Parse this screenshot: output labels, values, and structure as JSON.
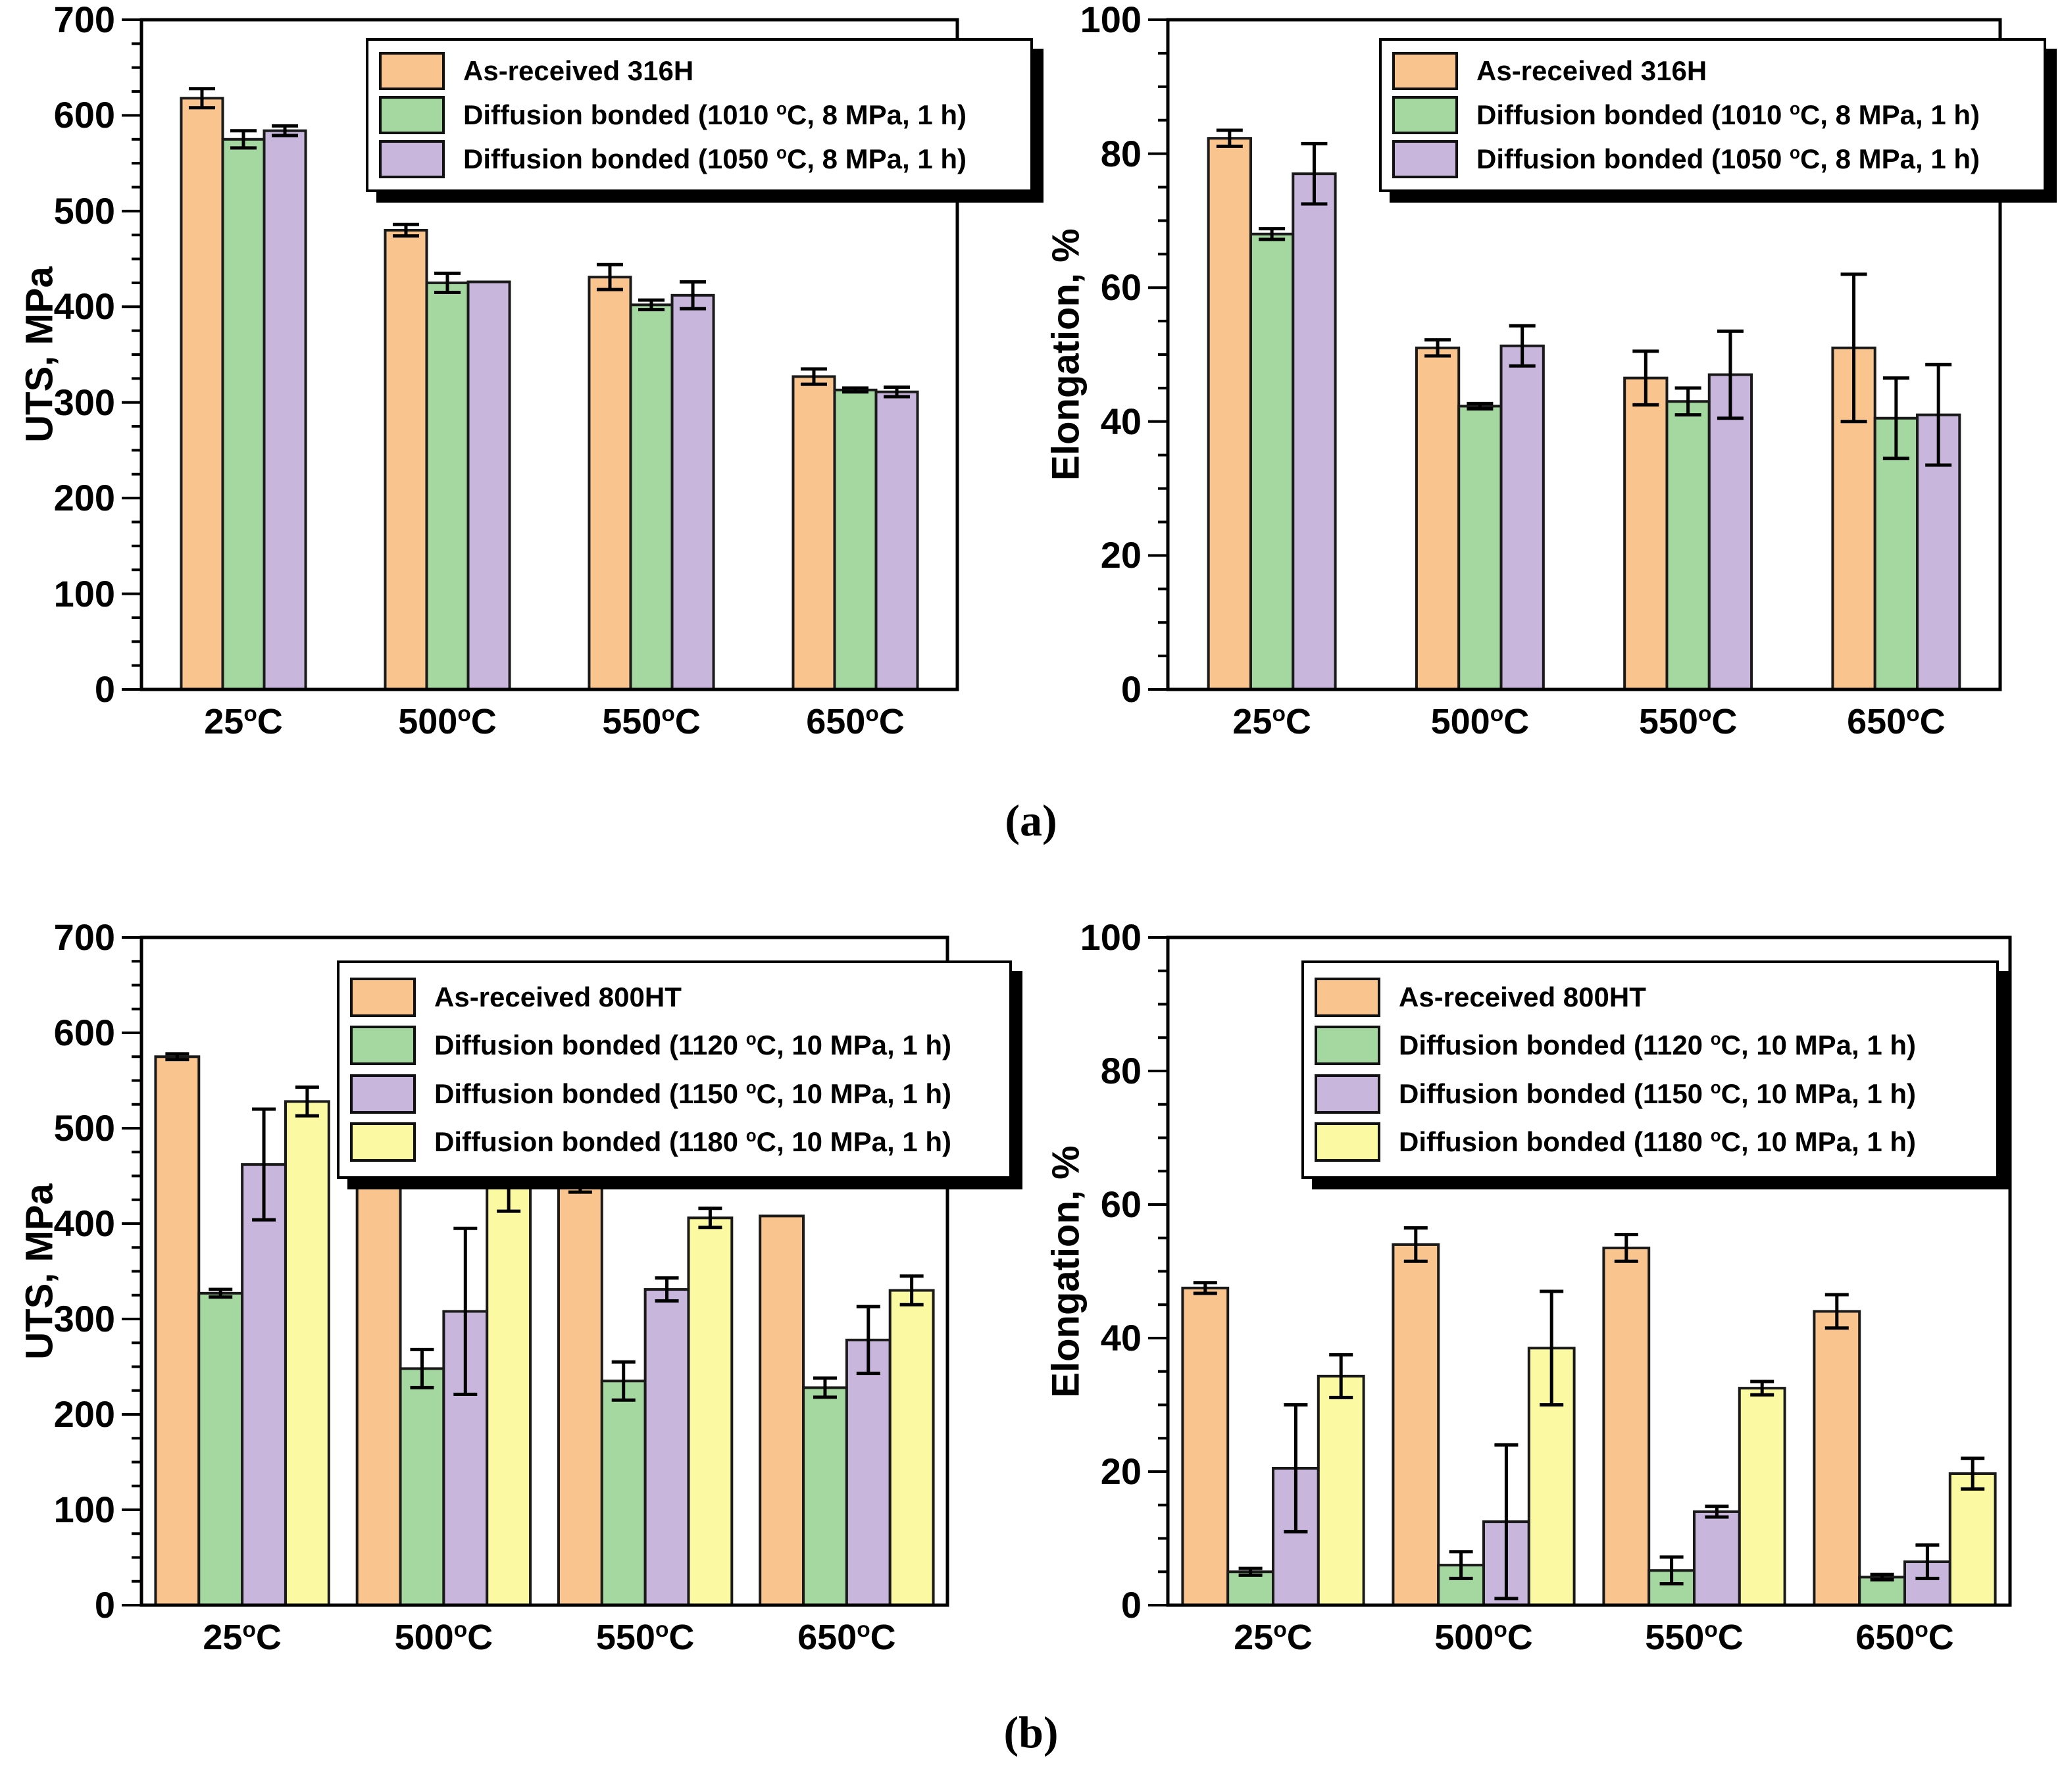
{
  "panels": {
    "a": "(a)",
    "b": "(b)"
  },
  "colors": {
    "as_received": "#FAC48E",
    "bonded_low": "#A5D8A1",
    "bonded_mid": "#C8B6DC",
    "bonded_high": "#FBF9A2",
    "bar_outline": "#1a1a1a",
    "axis": "#000000"
  },
  "chart_data": [
    {
      "id": "uts-316h",
      "type": "bar",
      "panel": "(a)",
      "ylabel": "UTS, MPa",
      "ylim": [
        0,
        700
      ],
      "major_tick": 100,
      "minor_tick": 25,
      "grid": false,
      "legend_position": "upper right",
      "categories": [
        "25°C",
        "500°C",
        "550°C",
        "650°C"
      ],
      "series": [
        {
          "name": "As-received 316H",
          "color": "#FAC48E",
          "values": [
            618,
            480,
            431,
            327
          ],
          "errors": [
            10,
            6,
            13,
            8
          ]
        },
        {
          "name": "Diffusion bonded (1010 °C, 8 MPa, 1 h)",
          "color": "#A5D8A1",
          "values": [
            575,
            425,
            402,
            313
          ],
          "errors": [
            9,
            10,
            5,
            2
          ]
        },
        {
          "name": "Diffusion bonded (1050 °C, 8 MPa, 1 h)",
          "color": "#C8B6DC",
          "values": [
            584,
            426,
            412,
            311
          ],
          "errors": [
            5,
            0,
            14,
            5
          ]
        }
      ]
    },
    {
      "id": "elongation-316h",
      "type": "bar",
      "panel": "(a)",
      "ylabel": "Elongation, %",
      "ylim": [
        0,
        100
      ],
      "major_tick": 20,
      "minor_tick": 5,
      "grid": false,
      "legend_position": "upper right",
      "categories": [
        "25°C",
        "500°C",
        "550°C",
        "650°C"
      ],
      "series": [
        {
          "name": "As-received 316H",
          "color": "#FAC48E",
          "values": [
            82.3,
            51,
            46.5,
            51
          ],
          "errors": [
            1.2,
            1.2,
            4,
            11
          ]
        },
        {
          "name": "Diffusion bonded (1010 °C, 8 MPa, 1 h)",
          "color": "#A5D8A1",
          "values": [
            68,
            42.3,
            43,
            40.5
          ],
          "errors": [
            0.8,
            0.4,
            2,
            6
          ]
        },
        {
          "name": "Diffusion bonded (1050 °C, 8 MPa, 1 h)",
          "color": "#C8B6DC",
          "values": [
            77,
            51.3,
            47,
            41
          ],
          "errors": [
            4.5,
            3,
            6.5,
            7.5
          ]
        }
      ]
    },
    {
      "id": "uts-800ht",
      "type": "bar",
      "panel": "(b)",
      "ylabel": "UTS, MPa",
      "ylim": [
        0,
        700
      ],
      "major_tick": 100,
      "minor_tick": 25,
      "grid": false,
      "legend_position": "upper right",
      "categories": [
        "25°C",
        "500°C",
        "550°C",
        "650°C"
      ],
      "series": [
        {
          "name": "As-received 800HT",
          "color": "#FAC48E",
          "values": [
            575,
            460,
            441,
            408
          ],
          "errors": [
            3,
            3,
            8,
            0
          ]
        },
        {
          "name": "Diffusion bonded (1120 °C, 10 MPa, 1 h)",
          "color": "#A5D8A1",
          "values": [
            327,
            248,
            235,
            228
          ],
          "errors": [
            4,
            20,
            20,
            10
          ]
        },
        {
          "name": "Diffusion bonded (1150 °C, 10 MPa, 1 h)",
          "color": "#C8B6DC",
          "values": [
            462,
            308,
            331,
            278
          ],
          "errors": [
            58,
            87,
            12,
            35
          ]
        },
        {
          "name": "Diffusion bonded (1180 °C, 10 MPa, 1 h)",
          "color": "#FBF9A2",
          "values": [
            528,
            446,
            406,
            330
          ],
          "errors": [
            15,
            33,
            10,
            15
          ]
        }
      ]
    },
    {
      "id": "elongation-800ht",
      "type": "bar",
      "panel": "(b)",
      "ylabel": "Elongation, %",
      "ylim": [
        0,
        100
      ],
      "major_tick": 20,
      "minor_tick": 5,
      "grid": false,
      "legend_position": "upper right",
      "categories": [
        "25°C",
        "500°C",
        "550°C",
        "650°C"
      ],
      "series": [
        {
          "name": "As-received 800HT",
          "color": "#FAC48E",
          "values": [
            47.5,
            54,
            53.5,
            44
          ],
          "errors": [
            0.8,
            2.5,
            2,
            2.5
          ]
        },
        {
          "name": "Diffusion bonded (1120 °C, 10 MPa, 1 h)",
          "color": "#A5D8A1",
          "values": [
            5,
            6,
            5.2,
            4.2
          ],
          "errors": [
            0.5,
            2,
            2,
            0.4
          ]
        },
        {
          "name": "Diffusion bonded (1150 °C, 10 MPa, 1 h)",
          "color": "#C8B6DC",
          "values": [
            20.5,
            12.5,
            14,
            6.5
          ],
          "errors": [
            9.5,
            11.5,
            0.8,
            2.5
          ]
        },
        {
          "name": "Diffusion bonded (1180 °C, 10 MPa, 1 h)",
          "color": "#FBF9A2",
          "values": [
            34.3,
            38.5,
            32.5,
            19.7
          ],
          "errors": [
            3.2,
            8.5,
            1,
            2.3
          ]
        }
      ]
    }
  ]
}
